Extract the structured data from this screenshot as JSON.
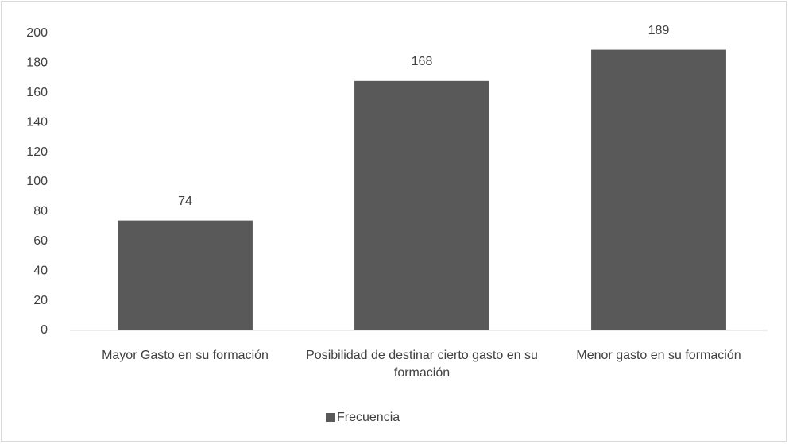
{
  "chart_data": {
    "type": "bar",
    "categories": [
      "Mayor Gasto en su formación",
      "Posibilidad de destinar cierto gasto en su formación",
      "Menor gasto en su formación"
    ],
    "series": [
      {
        "name": "Frecuencia",
        "color": "#595959",
        "values": [
          74,
          168,
          189
        ]
      }
    ],
    "ylim": [
      0,
      200
    ],
    "yticks": [
      0,
      20,
      40,
      60,
      80,
      100,
      120,
      140,
      160,
      180,
      200
    ],
    "grid": false,
    "legend": "bottom"
  }
}
